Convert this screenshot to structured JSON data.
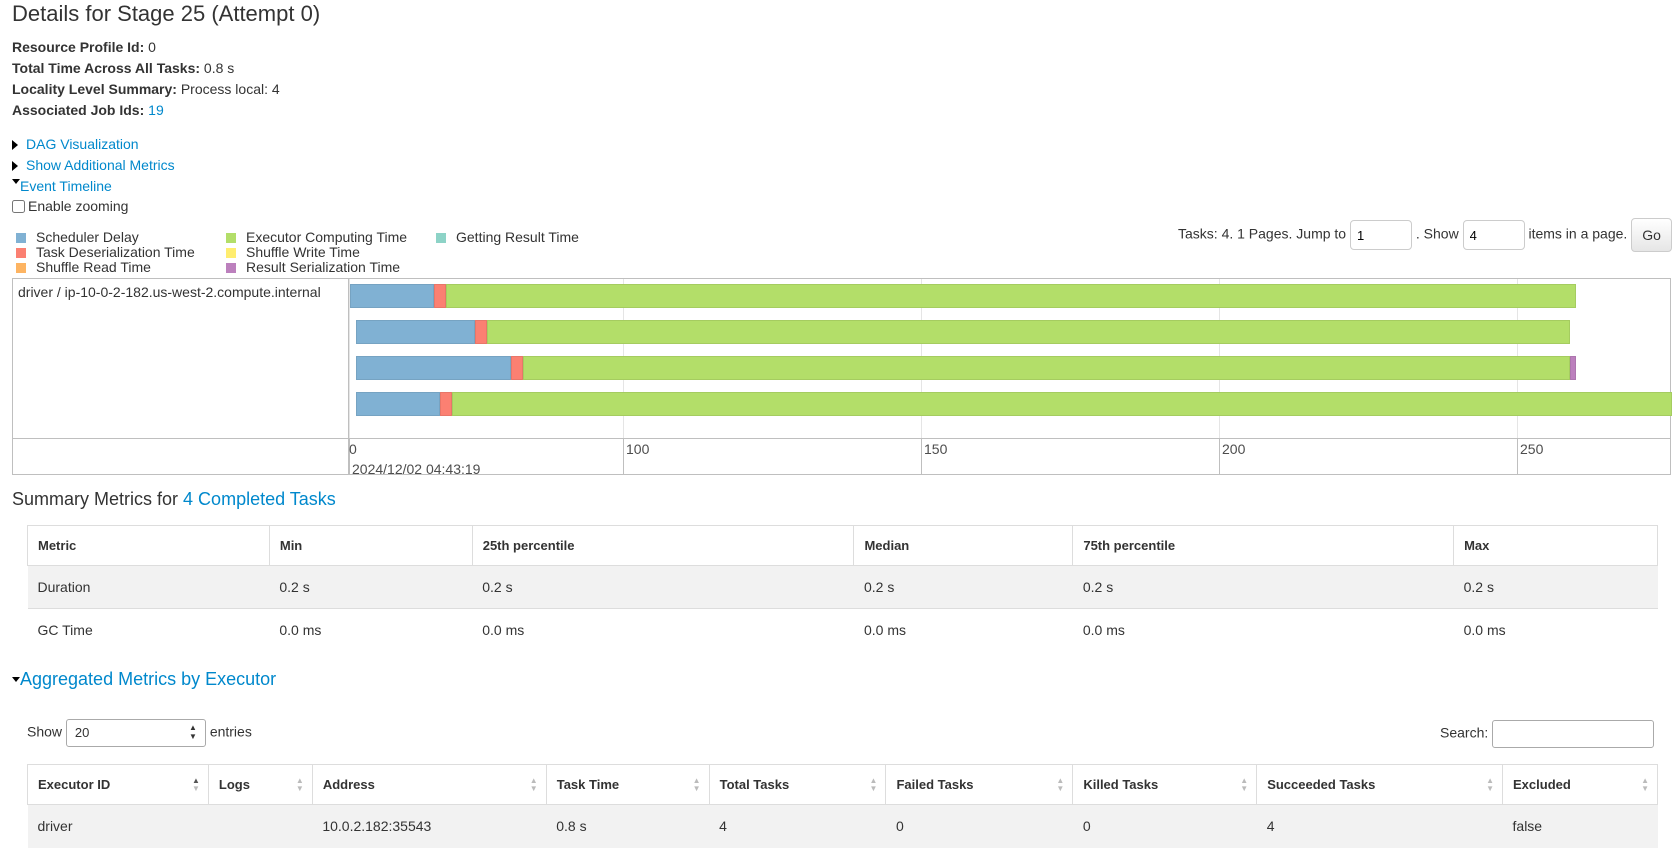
{
  "page_title": "Details for Stage 25 (Attempt 0)",
  "summary": [
    {
      "label": "Resource Profile Id:",
      "value": "0"
    },
    {
      "label": "Total Time Across All Tasks:",
      "value": "0.8 s"
    },
    {
      "label": "Locality Level Summary:",
      "value": "Process local: 4"
    },
    {
      "label": "Associated Job Ids:",
      "value": "19"
    }
  ],
  "toggles": {
    "dag": "DAG Visualization",
    "additional_metrics": "Show Additional Metrics",
    "event_timeline": "Event Timeline"
  },
  "zoom_label": "Enable zooming",
  "legend": [
    {
      "label": "Scheduler Delay",
      "color": "#80b1d3"
    },
    {
      "label": "Task Deserialization Time",
      "color": "#fb8072"
    },
    {
      "label": "Shuffle Read Time",
      "color": "#fdb462"
    },
    {
      "label": "Executor Computing Time",
      "color": "#b3de69"
    },
    {
      "label": "Shuffle Write Time",
      "color": "#ffed6f"
    },
    {
      "label": "Result Serialization Time",
      "color": "#bc80bd"
    },
    {
      "label": "Getting Result Time",
      "color": "#8dd3c7"
    }
  ],
  "pager": {
    "prefix": "Tasks: 4. 1 Pages. Jump to",
    "page_value": "1",
    "show_label": ". Show",
    "items_value": "4",
    "suffix": "items in a page.",
    "go": "Go"
  },
  "timeline": {
    "executor_label": "driver / ip-10-0-2-182.us-west-2.compute.internal",
    "date_label": "2024/12/02 04:43:19",
    "tick_labels": [
      "0",
      "100",
      "150",
      "200",
      "250"
    ],
    "tasks": [
      {
        "start": 0,
        "scheduler_delay": 14,
        "deserialization": 2,
        "computing": 190,
        "result_serialization": 0
      },
      {
        "start": 1,
        "scheduler_delay": 20,
        "deserialization": 2,
        "computing": 182,
        "result_serialization": 0
      },
      {
        "start": 1,
        "scheduler_delay": 26,
        "deserialization": 2,
        "computing": 176,
        "result_serialization": 1
      },
      {
        "start": 1,
        "scheduler_delay": 14,
        "deserialization": 2,
        "computing": 206,
        "result_serialization": 0
      }
    ]
  },
  "summary_metrics": {
    "title_prefix": "Summary Metrics for",
    "title_link": "4 Completed Tasks",
    "headers": [
      "Metric",
      "Min",
      "25th percentile",
      "Median",
      "75th percentile",
      "Max"
    ],
    "rows": [
      [
        "Duration",
        "0.2 s",
        "0.2 s",
        "0.2 s",
        "0.2 s",
        "0.2 s"
      ],
      [
        "GC Time",
        "0.0 ms",
        "0.0 ms",
        "0.0 ms",
        "0.0 ms",
        "0.0 ms"
      ]
    ]
  },
  "aggregated": {
    "title": "Aggregated Metrics by Executor",
    "show_label": "Show",
    "entries_value": "20",
    "entries_label": "entries",
    "search_label": "Search:",
    "headers": [
      "Executor ID",
      "Logs",
      "Address",
      "Task Time",
      "Total Tasks",
      "Failed Tasks",
      "Killed Tasks",
      "Succeeded Tasks",
      "Excluded"
    ],
    "rows": [
      [
        "driver",
        "",
        "10.0.2.182:35543",
        "0.8 s",
        "4",
        "0",
        "0",
        "4",
        "false"
      ]
    ]
  }
}
